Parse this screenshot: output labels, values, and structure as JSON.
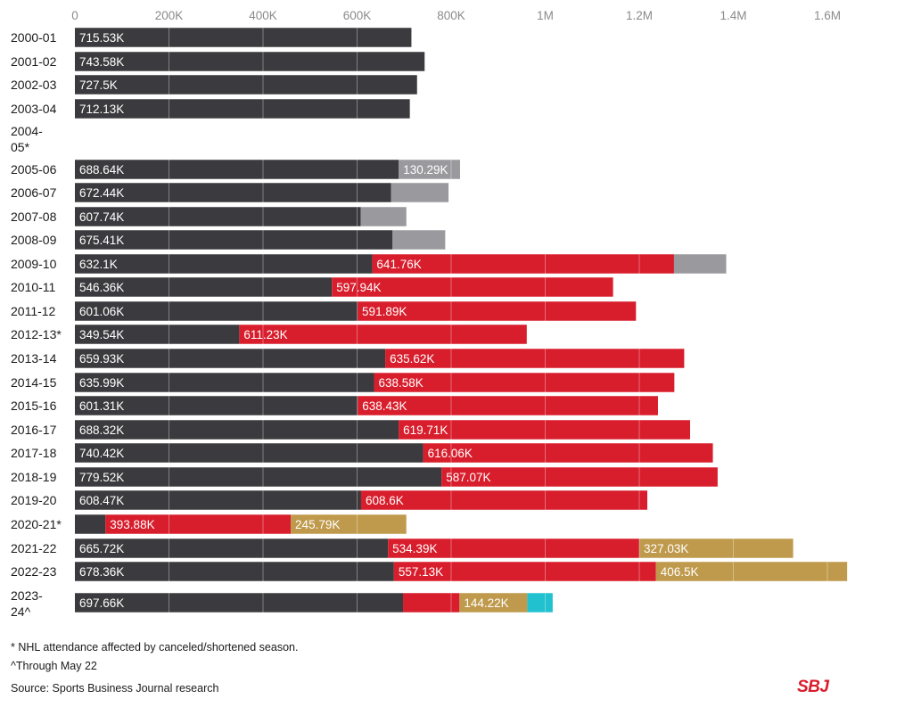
{
  "chart_data": {
    "type": "bar",
    "orientation": "horizontal",
    "stacked": true,
    "xlim": [
      0,
      1600000
    ],
    "x_ticks": [
      "0",
      "200K",
      "400K",
      "600K",
      "800K",
      "1M",
      "1.2M",
      "1.4M",
      "1.6M"
    ],
    "grid": true,
    "categories": [
      "2000-01",
      "2001-02",
      "2002-03",
      "2003-04",
      "2004-05*",
      "2005-06",
      "2006-07",
      "2007-08",
      "2008-09",
      "2009-10",
      "2010-11",
      "2011-12",
      "2012-13*",
      "2013-14",
      "2014-15",
      "2015-16",
      "2016-17",
      "2017-18",
      "2018-19",
      "2019-20",
      "2020-21*",
      "2021-22",
      "2022-23",
      "2023-24^"
    ],
    "category_lines": [
      [
        "2000-01"
      ],
      [
        "2001-02"
      ],
      [
        "2002-03"
      ],
      [
        "2003-04"
      ],
      [
        "2004-",
        "05*"
      ],
      [
        "2005-06"
      ],
      [
        "2006-07"
      ],
      [
        "2007-08"
      ],
      [
        "2008-09"
      ],
      [
        "2009-10"
      ],
      [
        "2010-11"
      ],
      [
        "2011-12"
      ],
      [
        "2012-13*"
      ],
      [
        "2013-14"
      ],
      [
        "2014-15"
      ],
      [
        "2015-16"
      ],
      [
        "2016-17"
      ],
      [
        "2017-18"
      ],
      [
        "2018-19"
      ],
      [
        "2019-20"
      ],
      [
        "2020-21*"
      ],
      [
        "2021-22"
      ],
      [
        "2022-23"
      ],
      [
        "2023-",
        "24^"
      ]
    ],
    "series": [
      {
        "color": "#3b3b3f",
        "values": [
          715530,
          743580,
          727500,
          712130,
          0,
          688640,
          672440,
          607740,
          675410,
          632100,
          546360,
          601060,
          349540,
          659930,
          635990,
          601310,
          688320,
          740420,
          779520,
          608470,
          65000,
          665720,
          678360,
          697660
        ],
        "labels": [
          "715.53K",
          "743.58K",
          "727.5K",
          "712.13K",
          "",
          "688.64K",
          "672.44K",
          "607.74K",
          "675.41K",
          "632.1K",
          "546.36K",
          "601.06K",
          "349.54K",
          "659.93K",
          "635.99K",
          "601.31K",
          "688.32K",
          "740.42K",
          "779.52K",
          "608.47K",
          "",
          "665.72K",
          "678.36K",
          "697.66K"
        ]
      },
      {
        "color": "#9a9a9e",
        "values": [
          0,
          0,
          0,
          0,
          0,
          130290,
          122000,
          97000,
          112000,
          0,
          0,
          0,
          0,
          0,
          0,
          0,
          0,
          0,
          0,
          0,
          0,
          0,
          0,
          0
        ],
        "labels": [
          "",
          "",
          "",
          "",
          "",
          "130.29K",
          "",
          "",
          "",
          "",
          "",
          "",
          "",
          "",
          "",
          "",
          "",
          "",
          "",
          "",
          "",
          "",
          "",
          ""
        ]
      },
      {
        "color": "#d81e2c",
        "values": [
          0,
          0,
          0,
          0,
          0,
          0,
          0,
          0,
          0,
          641760,
          597940,
          591890,
          611230,
          635620,
          638580,
          638430,
          619710,
          616060,
          587070,
          608600,
          393880,
          534390,
          557130,
          120000
        ],
        "labels": [
          "",
          "",
          "",
          "",
          "",
          "",
          "",
          "",
          "",
          "641.76K",
          "597.94K",
          "591.89K",
          "611.23K",
          "635.62K",
          "638.58K",
          "638.43K",
          "619.71K",
          "616.06K",
          "587.07K",
          "608.6K",
          "393.88K",
          "534.39K",
          "557.13K",
          ""
        ]
      },
      {
        "color": "#9a9a9e",
        "values": [
          0,
          0,
          0,
          0,
          0,
          0,
          0,
          0,
          0,
          111000,
          0,
          0,
          0,
          0,
          0,
          0,
          0,
          0,
          0,
          0,
          0,
          0,
          0,
          0
        ],
        "labels": [
          "",
          "",
          "",
          "",
          "",
          "",
          "",
          "",
          "",
          "",
          "",
          "",
          "",
          "",
          "",
          "",
          "",
          "",
          "",
          "",
          "",
          "",
          "",
          ""
        ]
      },
      {
        "color": "#bf9a4c",
        "values": [
          0,
          0,
          0,
          0,
          0,
          0,
          0,
          0,
          0,
          0,
          0,
          0,
          0,
          0,
          0,
          0,
          0,
          0,
          0,
          0,
          245790,
          327030,
          406500,
          144220
        ],
        "labels": [
          "",
          "",
          "",
          "",
          "",
          "",
          "",
          "",
          "",
          "",
          "",
          "",
          "",
          "",
          "",
          "",
          "",
          "",
          "",
          "",
          "245.79K",
          "327.03K",
          "406.5K",
          "144.22K"
        ]
      },
      {
        "color": "#22c1d0",
        "values": [
          0,
          0,
          0,
          0,
          0,
          0,
          0,
          0,
          0,
          0,
          0,
          0,
          0,
          0,
          0,
          0,
          0,
          0,
          0,
          0,
          0,
          0,
          0,
          54000
        ],
        "labels": [
          "",
          "",
          "",
          "",
          "",
          "",
          "",
          "",
          "",
          "",
          "",
          "",
          "",
          "",
          "",
          "",
          "",
          "",
          "",
          "",
          "",
          "",
          "",
          ""
        ]
      }
    ]
  },
  "footnotes": {
    "note1": "* NHL attendance affected by canceled/shortened season.",
    "note2": "^Through May 22",
    "source": "Source: Sports Business Journal research"
  },
  "logo_text": "SBJ"
}
